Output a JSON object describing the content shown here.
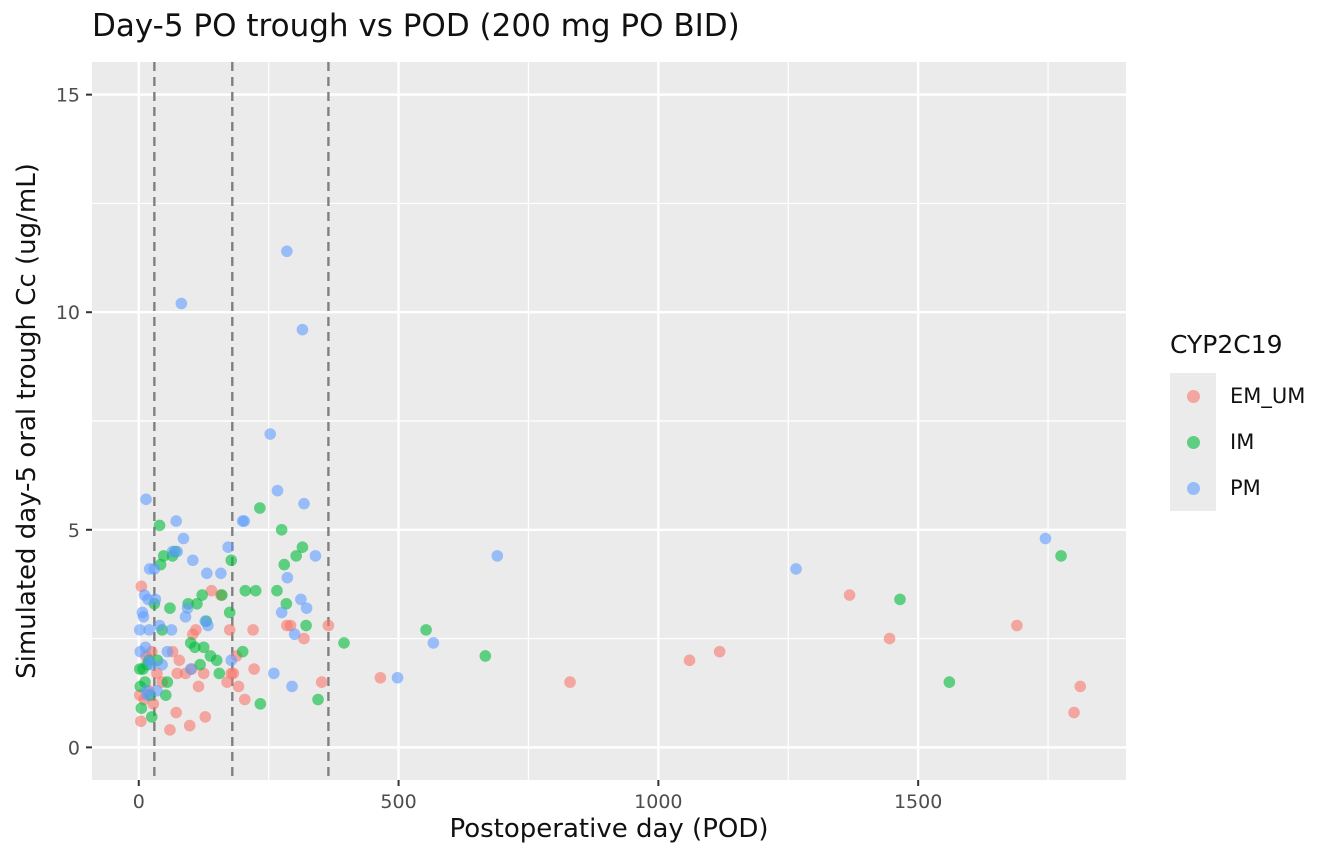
{
  "chart_data": {
    "type": "scatter",
    "title": "Day-5 PO trough vs POD (200 mg PO BID)",
    "xlabel": "Postoperative day (POD)",
    "ylabel": "Simulated day-5 oral trough Cc (ug/mL)",
    "xlim": [
      -90,
      1900
    ],
    "ylim": [
      -0.75,
      15.75
    ],
    "x_ticks": [
      0,
      500,
      1000,
      1500
    ],
    "x_tick_labels": [
      "0",
      "500",
      "1000",
      "1500"
    ],
    "y_ticks": [
      0,
      5,
      10,
      15
    ],
    "y_tick_labels": [
      "0",
      "5",
      "10",
      "15"
    ],
    "grid": true,
    "vlines": [
      30,
      180,
      365
    ],
    "legend": {
      "title": "CYP2C19",
      "position": "right"
    },
    "series": [
      {
        "name": "EM_UM",
        "color": "#F8766D",
        "points": [
          [
            5,
            3.7
          ],
          [
            2,
            1.2
          ],
          [
            4,
            0.6
          ],
          [
            10,
            1.1
          ],
          [
            14,
            2.1
          ],
          [
            20,
            1.3
          ],
          [
            25,
            2.2
          ],
          [
            28,
            1.0
          ],
          [
            35,
            1.7
          ],
          [
            45,
            1.5
          ],
          [
            60,
            0.4
          ],
          [
            65,
            2.2
          ],
          [
            72,
            0.8
          ],
          [
            74,
            1.7
          ],
          [
            78,
            2.0
          ],
          [
            90,
            1.7
          ],
          [
            98,
            0.5
          ],
          [
            102,
            1.8
          ],
          [
            104,
            2.6
          ],
          [
            110,
            2.7
          ],
          [
            115,
            1.4
          ],
          [
            125,
            1.7
          ],
          [
            128,
            0.7
          ],
          [
            140,
            3.6
          ],
          [
            158,
            3.5
          ],
          [
            170,
            1.5
          ],
          [
            175,
            2.7
          ],
          [
            178,
            1.7
          ],
          [
            182,
            1.7
          ],
          [
            188,
            2.1
          ],
          [
            192,
            1.4
          ],
          [
            204,
            1.1
          ],
          [
            220,
            2.7
          ],
          [
            222,
            1.8
          ],
          [
            285,
            2.8
          ],
          [
            292,
            2.8
          ],
          [
            318,
            2.5
          ],
          [
            352,
            1.5
          ],
          [
            365,
            2.8
          ],
          [
            465,
            1.6
          ],
          [
            830,
            1.5
          ],
          [
            1060,
            2.0
          ],
          [
            1118,
            2.2
          ],
          [
            1368,
            3.5
          ],
          [
            1445,
            2.5
          ],
          [
            1690,
            2.8
          ],
          [
            1800,
            0.8
          ],
          [
            1812,
            1.4
          ]
        ]
      },
      {
        "name": "IM",
        "color": "#00BA38",
        "points": [
          [
            2,
            1.8
          ],
          [
            3,
            1.4
          ],
          [
            5,
            0.9
          ],
          [
            8,
            1.8
          ],
          [
            12,
            1.5
          ],
          [
            16,
            1.9
          ],
          [
            20,
            2.0
          ],
          [
            22,
            1.2
          ],
          [
            25,
            0.7
          ],
          [
            30,
            3.3
          ],
          [
            36,
            2.0
          ],
          [
            40,
            5.1
          ],
          [
            42,
            4.2
          ],
          [
            45,
            2.7
          ],
          [
            48,
            4.4
          ],
          [
            52,
            1.2
          ],
          [
            55,
            1.5
          ],
          [
            60,
            3.2
          ],
          [
            65,
            4.4
          ],
          [
            70,
            4.5
          ],
          [
            95,
            3.3
          ],
          [
            100,
            2.4
          ],
          [
            108,
            2.3
          ],
          [
            112,
            3.3
          ],
          [
            118,
            1.9
          ],
          [
            122,
            3.5
          ],
          [
            125,
            2.3
          ],
          [
            130,
            2.9
          ],
          [
            138,
            2.1
          ],
          [
            150,
            2.0
          ],
          [
            155,
            1.7
          ],
          [
            160,
            3.5
          ],
          [
            175,
            3.1
          ],
          [
            178,
            4.3
          ],
          [
            200,
            2.2
          ],
          [
            205,
            3.6
          ],
          [
            225,
            3.6
          ],
          [
            233,
            5.5
          ],
          [
            234,
            1.0
          ],
          [
            266,
            3.6
          ],
          [
            275,
            5.0
          ],
          [
            280,
            4.2
          ],
          [
            284,
            3.3
          ],
          [
            303,
            4.4
          ],
          [
            315,
            4.6
          ],
          [
            322,
            2.8
          ],
          [
            345,
            1.1
          ],
          [
            395,
            2.4
          ],
          [
            553,
            2.7
          ],
          [
            667,
            2.1
          ],
          [
            1465,
            3.4
          ],
          [
            1560,
            1.5
          ],
          [
            1775,
            4.4
          ]
        ]
      },
      {
        "name": "PM",
        "color": "#619CFF",
        "points": [
          [
            2,
            2.7
          ],
          [
            3,
            2.2
          ],
          [
            7,
            3.1
          ],
          [
            9,
            3.0
          ],
          [
            11,
            3.5
          ],
          [
            13,
            2.3
          ],
          [
            14,
            5.7
          ],
          [
            15,
            1.3
          ],
          [
            17,
            1.2
          ],
          [
            18,
            3.4
          ],
          [
            19,
            2.0
          ],
          [
            20,
            2.7
          ],
          [
            21,
            4.1
          ],
          [
            25,
            1.9
          ],
          [
            30,
            4.1
          ],
          [
            32,
            3.4
          ],
          [
            35,
            1.3
          ],
          [
            40,
            2.8
          ],
          [
            45,
            1.9
          ],
          [
            55,
            2.2
          ],
          [
            63,
            2.7
          ],
          [
            65,
            4.5
          ],
          [
            72,
            5.2
          ],
          [
            74,
            4.5
          ],
          [
            82,
            10.2
          ],
          [
            86,
            4.8
          ],
          [
            90,
            3.0
          ],
          [
            94,
            3.2
          ],
          [
            100,
            1.8
          ],
          [
            104,
            4.3
          ],
          [
            128,
            2.9
          ],
          [
            131,
            4.0
          ],
          [
            133,
            2.8
          ],
          [
            158,
            4.0
          ],
          [
            172,
            4.6
          ],
          [
            178,
            2.0
          ],
          [
            200,
            5.2
          ],
          [
            203,
            5.2
          ],
          [
            253,
            7.2
          ],
          [
            260,
            1.7
          ],
          [
            267,
            5.9
          ],
          [
            275,
            3.1
          ],
          [
            285,
            11.4
          ],
          [
            286,
            3.9
          ],
          [
            295,
            1.4
          ],
          [
            300,
            2.6
          ],
          [
            312,
            3.4
          ],
          [
            315,
            9.6
          ],
          [
            318,
            5.6
          ],
          [
            323,
            3.2
          ],
          [
            340,
            4.4
          ],
          [
            498,
            1.6
          ],
          [
            567,
            2.4
          ],
          [
            690,
            4.4
          ],
          [
            1265,
            4.1
          ],
          [
            1745,
            4.8
          ]
        ]
      }
    ]
  }
}
